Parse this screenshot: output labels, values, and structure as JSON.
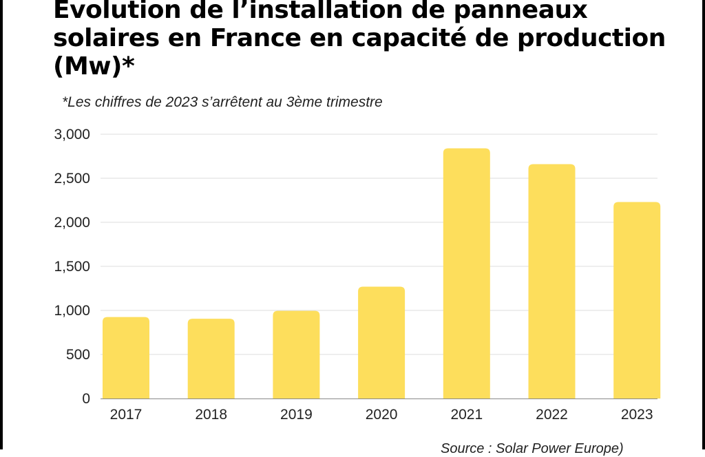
{
  "title": "Évolution de l’installation de panneaux solaires en France en capacité de production (Mw)*",
  "subtitle": "*Les chiffres de 2023 s’arrêtent au 3ème trimestre",
  "source": "Source : Solar Power Europe)",
  "colors": {
    "bar": "#FDDE5C",
    "grid": "#DDDDDD",
    "axis": "#888888"
  },
  "chart_data": {
    "type": "bar",
    "categories": [
      "2017",
      "2018",
      "2019",
      "2020",
      "2021",
      "2022",
      "2023"
    ],
    "values": [
      925,
      905,
      995,
      1270,
      2840,
      2660,
      2230
    ],
    "ylim": [
      0,
      3000
    ],
    "yticks": [
      0,
      500,
      1000,
      1500,
      2000,
      2500,
      3000
    ],
    "ytick_labels": [
      "0",
      "500",
      "1,000",
      "1,500",
      "2,000",
      "2,500",
      "3,000"
    ],
    "grid": true,
    "legend": "none"
  }
}
